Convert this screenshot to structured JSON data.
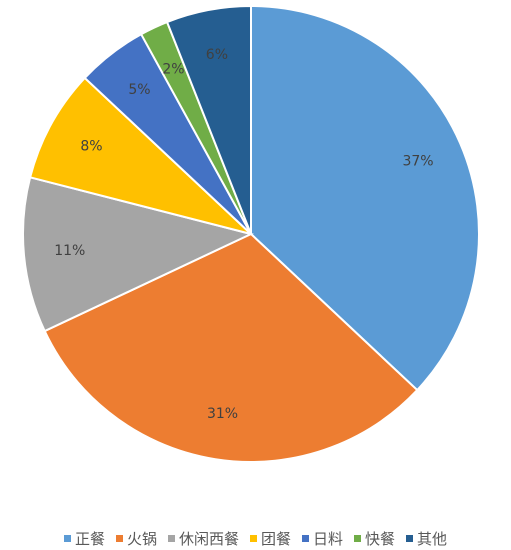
{
  "chart_data": {
    "type": "pie",
    "title": "",
    "categories": [
      "正餐",
      "火锅",
      "休闲西餐",
      "团餐",
      "日料",
      "快餐",
      "其他"
    ],
    "values": [
      37,
      31,
      11,
      8,
      5,
      2,
      6
    ],
    "labels": [
      "37%",
      "31%",
      "11%",
      "8%",
      "5%",
      "2%",
      "6%"
    ],
    "colors": [
      "#5B9BD5",
      "#ED7D31",
      "#A5A5A5",
      "#FFC000",
      "#4472C4",
      "#70AD47",
      "#255E91"
    ],
    "unit": "%",
    "start_angle": "12 o'clock",
    "direction": "clockwise",
    "legend_position": "bottom"
  }
}
